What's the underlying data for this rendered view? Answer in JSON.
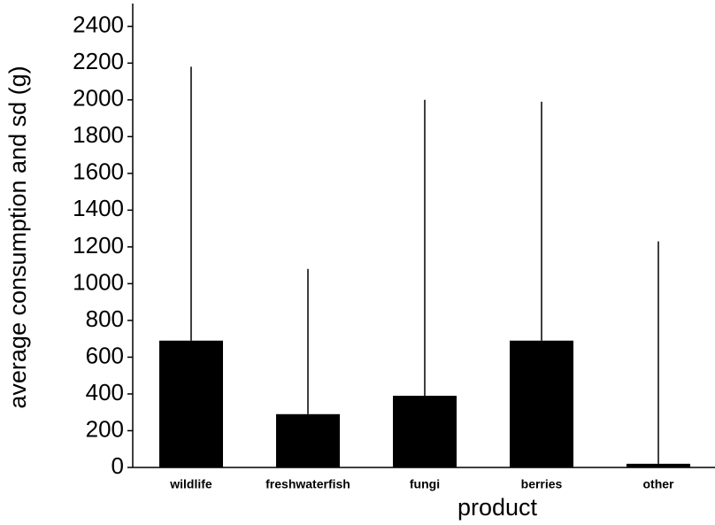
{
  "chart_data": {
    "type": "bar",
    "x_label": "product",
    "y_label": "average consumption and sd (g)",
    "categories": [
      "wildlife",
      "freshwaterfish",
      "fungi",
      "berries",
      "other"
    ],
    "values": [
      690,
      290,
      390,
      690,
      20
    ],
    "errors": [
      1490,
      790,
      1610,
      1300,
      1210
    ],
    "color": "#000000",
    "ylim": [
      0,
      2500
    ],
    "yticks": [
      0,
      200,
      400,
      600,
      800,
      1000,
      1200,
      1400,
      1600,
      1800,
      2000,
      2200,
      2400
    ],
    "grid": false
  }
}
